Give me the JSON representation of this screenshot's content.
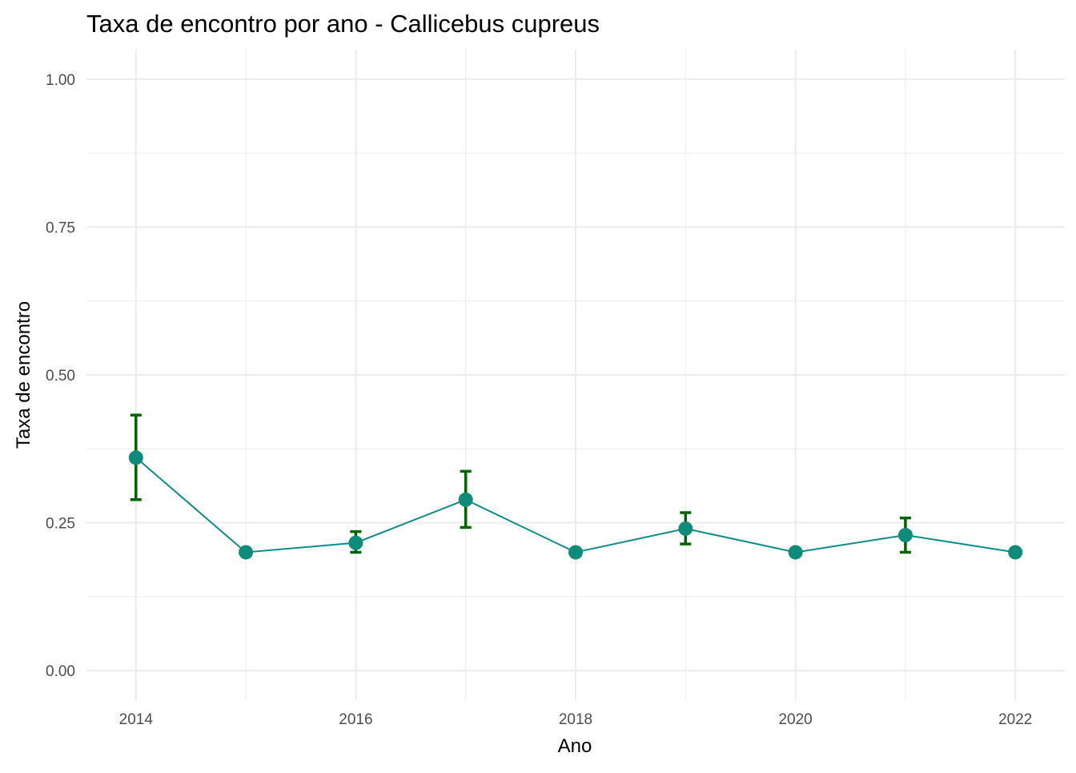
{
  "chart_data": {
    "type": "line",
    "title": "Taxa de encontro por ano - Callicebus cupreus",
    "xlabel": "Ano",
    "ylabel": "Taxa de encontro",
    "xlim": [
      2013.55,
      2022.45
    ],
    "ylim": [
      -0.05,
      1.05
    ],
    "x_ticks": [
      2014,
      2016,
      2018,
      2020,
      2022
    ],
    "x_tick_labels": [
      "2014",
      "2016",
      "2018",
      "2020",
      "2022"
    ],
    "y_ticks": [
      0,
      0.25,
      0.5,
      0.75,
      1.0
    ],
    "y_tick_labels": [
      "0.00",
      "0.25",
      "0.50",
      "0.75",
      "1.00"
    ],
    "grid": true,
    "legend": "none",
    "series": [
      {
        "x": [
          2014,
          2015,
          2016,
          2017,
          2018,
          2019,
          2020,
          2021,
          2022
        ],
        "y": [
          0.36,
          0.2,
          0.216,
          0.289,
          0.2,
          0.24,
          0.2,
          0.229,
          0.2
        ],
        "error_low": [
          0.289,
          0.2,
          0.2,
          0.242,
          0.2,
          0.214,
          0.2,
          0.2,
          0.2
        ],
        "error_high": [
          0.432,
          0.2,
          0.235,
          0.337,
          0.2,
          0.267,
          0.2,
          0.258,
          0.2
        ]
      }
    ],
    "colors": {
      "line": "#0f8b8b",
      "point": "#0f8b7a",
      "errorbar": "#006400",
      "grid": "#ebebeb"
    }
  }
}
